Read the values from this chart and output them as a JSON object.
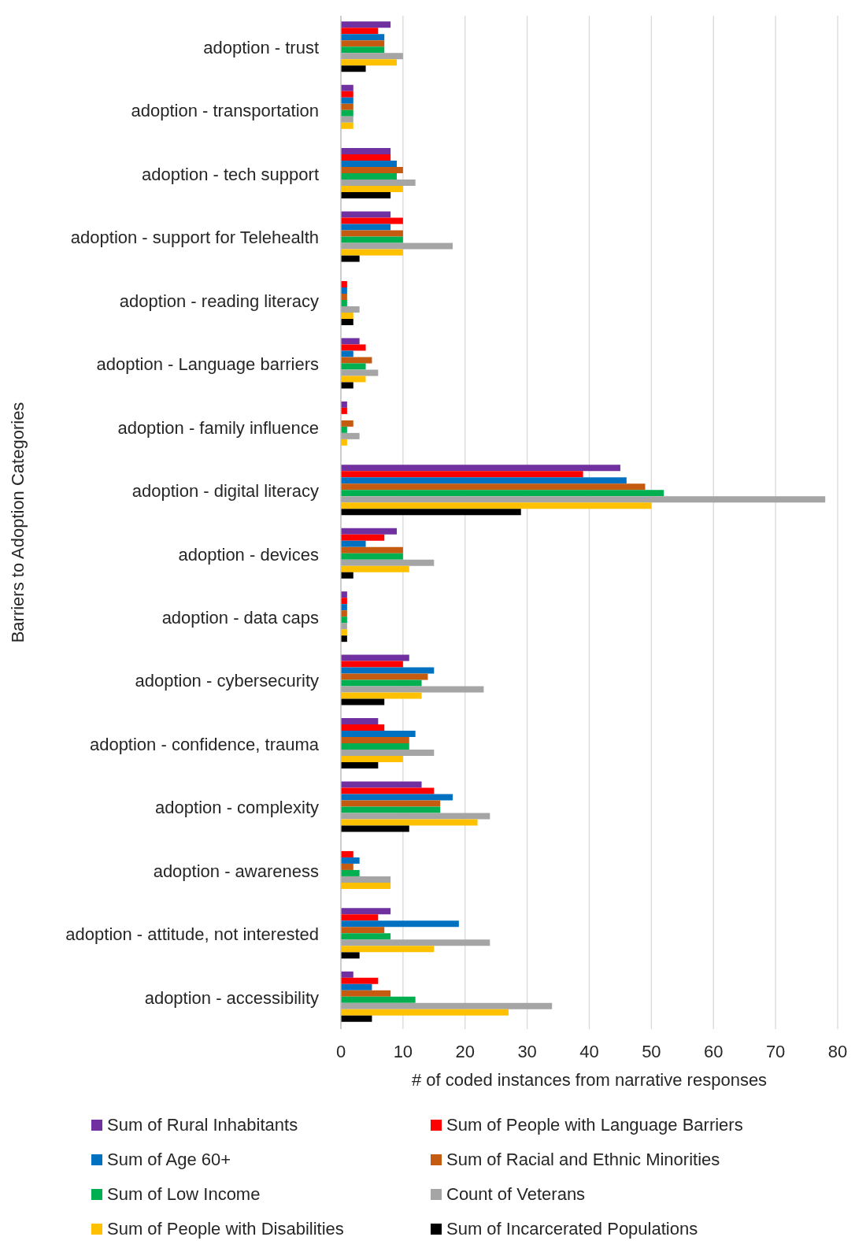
{
  "chart_data": {
    "type": "bar",
    "orientation": "horizontal",
    "xlabel": "# of coded instances from narrative responses",
    "ylabel": "Barriers to Adoption Categories",
    "categories": [
      "adoption - trust",
      "adoption - transportation",
      "adoption - tech support",
      "adoption - support for Telehealth",
      "adoption - reading literacy",
      "adoption - Language barriers",
      "adoption - family influence",
      "adoption - digital literacy",
      "adoption - devices",
      "adoption - data caps",
      "adoption - cybersecurity",
      "adoption - confidence, trauma",
      "adoption - complexity",
      "adoption - awareness",
      "adoption - attitude, not interested",
      "adoption - accessibility"
    ],
    "series": [
      {
        "name": "Sum of Rural Inhabitants",
        "color": "#7030a0",
        "values": [
          8,
          2,
          8,
          8,
          0,
          3,
          1,
          45,
          9,
          1,
          11,
          6,
          13,
          0,
          8,
          2
        ]
      },
      {
        "name": "Sum of People with Language Barriers",
        "color": "#ff0000",
        "values": [
          6,
          2,
          8,
          10,
          1,
          4,
          1,
          39,
          7,
          1,
          10,
          7,
          15,
          2,
          6,
          6
        ]
      },
      {
        "name": "Sum of Age 60+",
        "color": "#0070c0",
        "values": [
          7,
          2,
          9,
          8,
          1,
          2,
          0,
          46,
          4,
          1,
          15,
          12,
          18,
          3,
          19,
          5
        ]
      },
      {
        "name": "Sum of Racial and Ethnic Minorities",
        "color": "#c55a11",
        "values": [
          7,
          2,
          10,
          10,
          1,
          5,
          2,
          49,
          10,
          1,
          14,
          11,
          16,
          2,
          7,
          8
        ]
      },
      {
        "name": "Sum of Low Income",
        "color": "#00b050",
        "values": [
          7,
          2,
          9,
          10,
          1,
          4,
          1,
          52,
          10,
          1,
          13,
          11,
          16,
          3,
          8,
          12
        ]
      },
      {
        "name": "Count of Veterans",
        "color": "#a5a5a5",
        "values": [
          10,
          2,
          12,
          18,
          3,
          6,
          3,
          78,
          15,
          1,
          23,
          15,
          24,
          8,
          24,
          34
        ]
      },
      {
        "name": "Sum of People with Disabilities",
        "color": "#ffc000",
        "values": [
          9,
          2,
          10,
          10,
          2,
          4,
          1,
          50,
          11,
          1,
          13,
          10,
          22,
          8,
          15,
          27
        ]
      },
      {
        "name": "Sum of Incarcerated Populations",
        "color": "#000000",
        "values": [
          4,
          0,
          8,
          3,
          2,
          2,
          0,
          29,
          2,
          1,
          7,
          6,
          11,
          0,
          3,
          5
        ]
      }
    ],
    "xlim": [
      0,
      80
    ],
    "xticks": [
      0,
      10,
      20,
      30,
      40,
      50,
      60,
      70,
      80
    ],
    "grid": "x",
    "legend": "bottom"
  }
}
